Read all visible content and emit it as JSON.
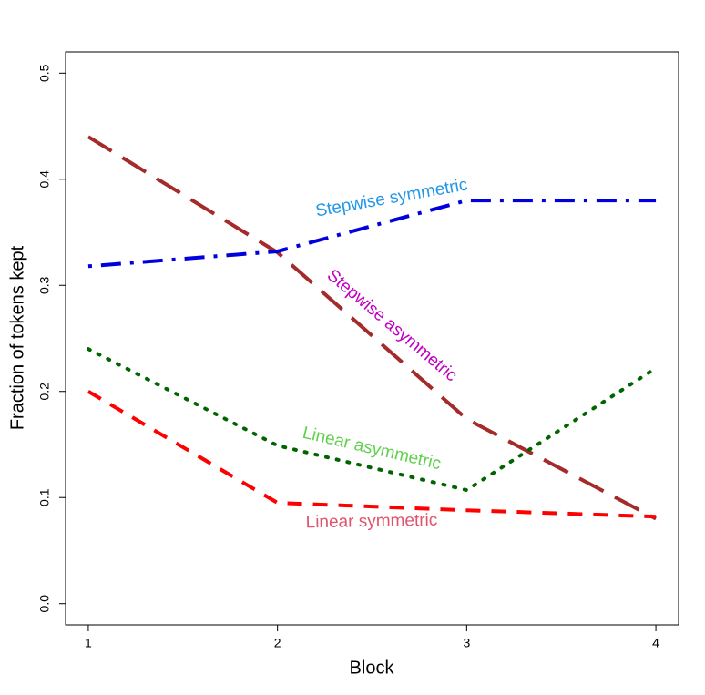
{
  "chart_data": {
    "type": "line",
    "x_label": "Block",
    "y_label": "Fraction of tokens kept",
    "x": [
      1,
      2,
      3,
      4
    ],
    "series": [
      {
        "name": "Stepwise asymmetric",
        "color": "#a52a2a",
        "label_color": "#c000c0",
        "dash": "longdash",
        "values": [
          0.44,
          0.331,
          0.174,
          0.08
        ]
      },
      {
        "name": "Stepwise symmetric",
        "color": "#0000dd",
        "label_color": "#2297e6",
        "dash": "dotdash",
        "values": [
          0.318,
          0.332,
          0.38,
          0.38
        ]
      },
      {
        "name": "Linear asymmetric",
        "color": "#006400",
        "label_color": "#61d04f",
        "dash": "dotted",
        "values": [
          0.24,
          0.149,
          0.107,
          0.222
        ]
      },
      {
        "name": "Linear symmetric",
        "color": "#ff0000",
        "label_color": "#df536b",
        "dash": "dashed",
        "values": [
          0.2,
          0.095,
          0.088,
          0.082
        ]
      }
    ],
    "xlim": [
      0.88,
      4.12
    ],
    "ylim": [
      -0.02,
      0.52
    ],
    "xticks": [
      1,
      2,
      3,
      4
    ],
    "yticks": [
      {
        "value": 0,
        "label": "0.0"
      },
      0.1,
      0.2,
      0.3,
      0.4,
      0.5
    ]
  }
}
